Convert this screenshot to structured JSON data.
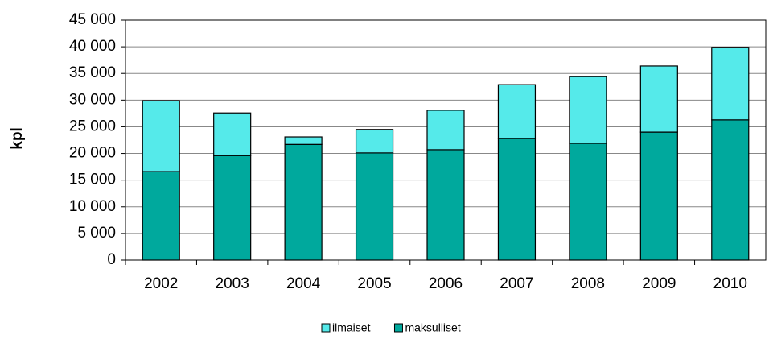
{
  "chart_data": {
    "type": "stacked-bar",
    "y_label": "kpl",
    "categories": [
      "2002",
      "2003",
      "2004",
      "2005",
      "2006",
      "2007",
      "2008",
      "2009",
      "2010"
    ],
    "series": [
      {
        "name": "maksulliset",
        "color": "#00a99d",
        "values": [
          16600,
          19600,
          21700,
          20100,
          20700,
          22800,
          21900,
          24000,
          26300
        ]
      },
      {
        "name": "ilmaiset",
        "color": "#55eaea",
        "values": [
          13300,
          8000,
          1400,
          4400,
          7400,
          10100,
          12500,
          12400,
          13600
        ]
      }
    ],
    "ylim": [
      0,
      45000
    ],
    "yticks": [
      0,
      {
        "value": 5000,
        "label": "5 000"
      },
      {
        "value": 10000,
        "label": "10 000"
      },
      {
        "value": 15000,
        "label": "15 000"
      },
      {
        "value": 20000,
        "label": "20 000"
      },
      {
        "value": 25000,
        "label": "25 000"
      },
      {
        "value": 30000,
        "label": "30 000"
      },
      {
        "value": 35000,
        "label": "35 000"
      },
      {
        "value": 40000,
        "label": "40 000"
      },
      {
        "value": 45000,
        "label": "45 000"
      }
    ],
    "grid": true,
    "legend": "bottom"
  }
}
